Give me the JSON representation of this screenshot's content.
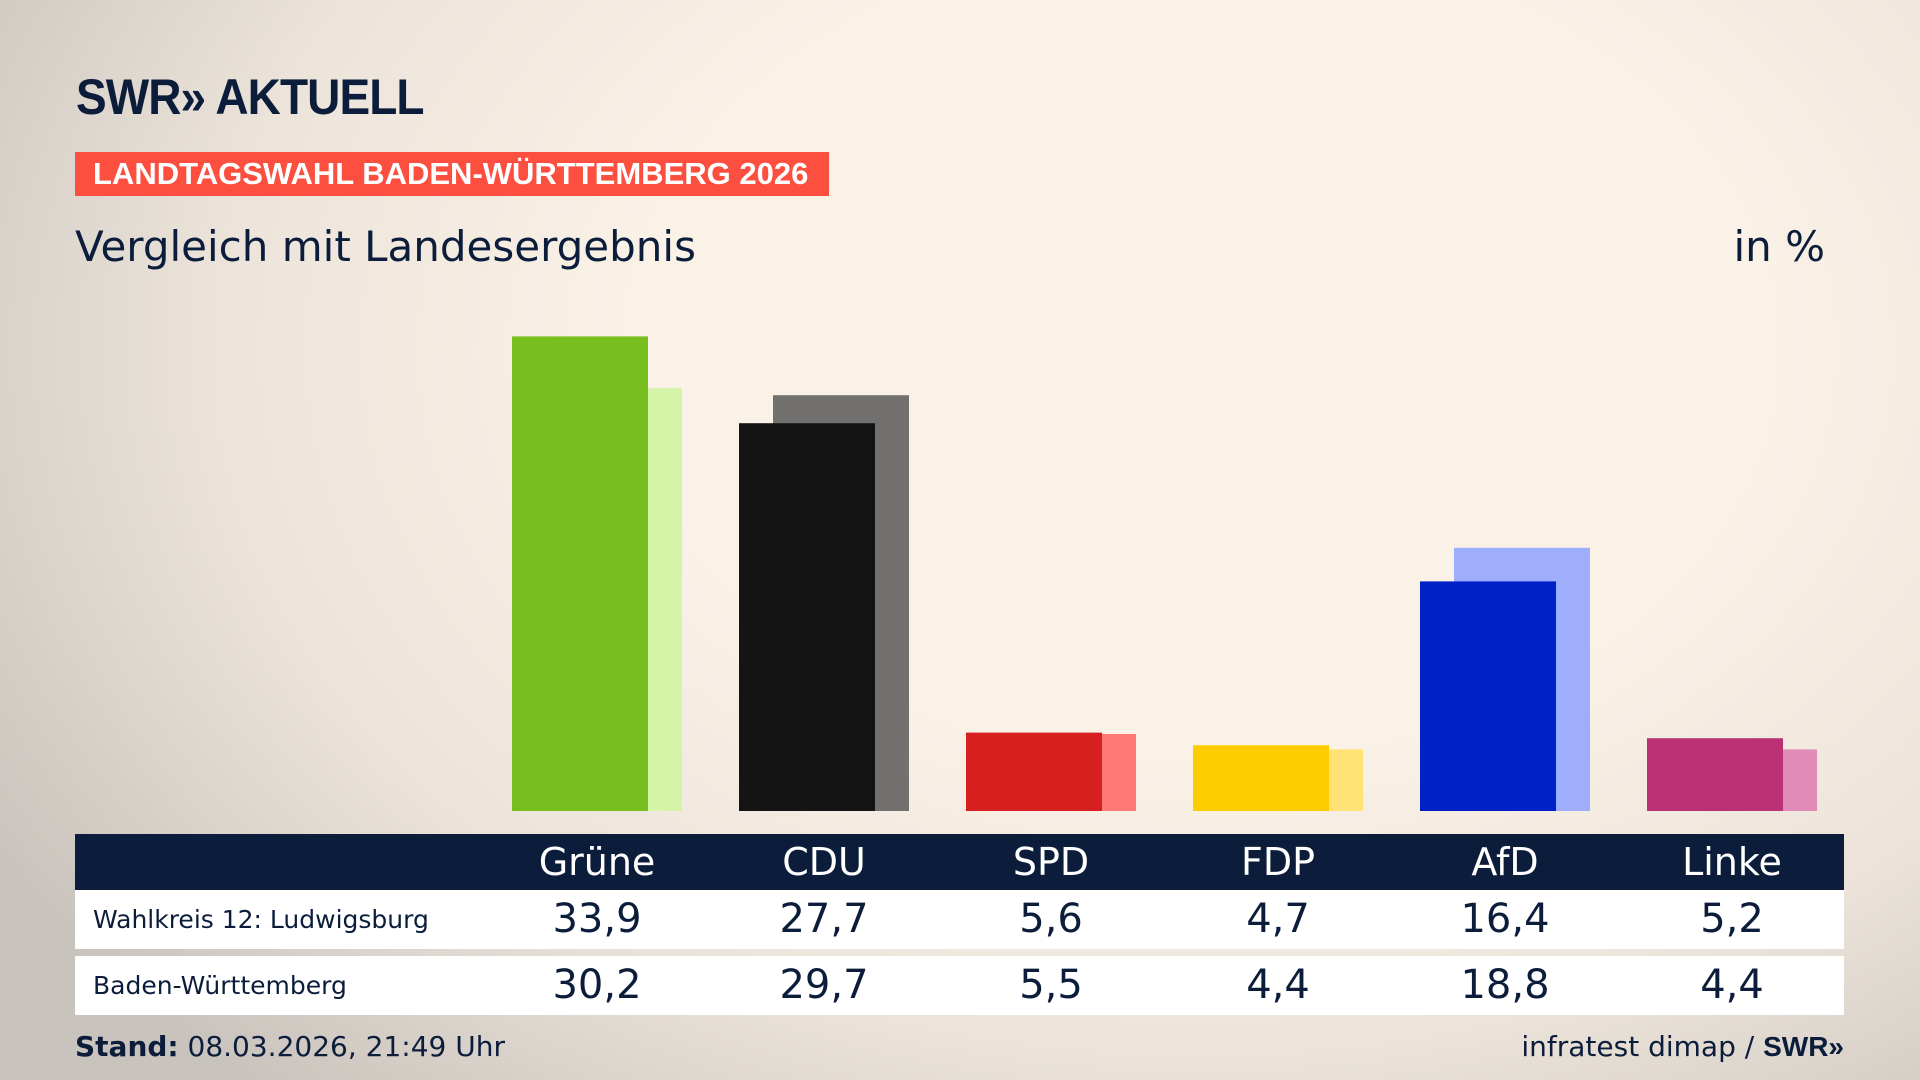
{
  "header": {
    "logo": "SWR» AKTUELL",
    "banner": "LANDTAGSWAHL BADEN-WÜRTTEMBERG 2026",
    "subtitle": "Vergleich mit Landesergebnis",
    "unit": "in %"
  },
  "chart_data": {
    "type": "bar",
    "categories": [
      "Grüne",
      "CDU",
      "SPD",
      "FDP",
      "AfD",
      "Linke"
    ],
    "series": [
      {
        "name": "Wahlkreis 12: Ludwigsburg",
        "values": [
          33.9,
          27.7,
          5.6,
          4.7,
          16.4,
          5.2
        ],
        "display": [
          "33,9",
          "27,7",
          "5,6",
          "4,7",
          "16,4",
          "5,2"
        ]
      },
      {
        "name": "Baden-Württemberg",
        "values": [
          30.2,
          29.7,
          5.5,
          4.4,
          18.8,
          4.4
        ],
        "display": [
          "30,2",
          "29,7",
          "5,5",
          "4,4",
          "18,8",
          "4,4"
        ]
      }
    ],
    "colors": [
      "#78be1e",
      "#141414",
      "#d71f20",
      "#ffcc00",
      "#0020c8",
      "#bc3175"
    ],
    "light_colors": [
      "#d4f5a8",
      "#737170",
      "#ff7a74",
      "#ffe375",
      "#9eaefc",
      "#e08bb8"
    ],
    "ylim": [
      0,
      35
    ],
    "grid": false
  },
  "footer": {
    "stand_label": "Stand:",
    "stand_value": " 08.03.2026, 21:49 Uhr",
    "source": "infratest dimap / ",
    "source_logo": "SWR»"
  }
}
